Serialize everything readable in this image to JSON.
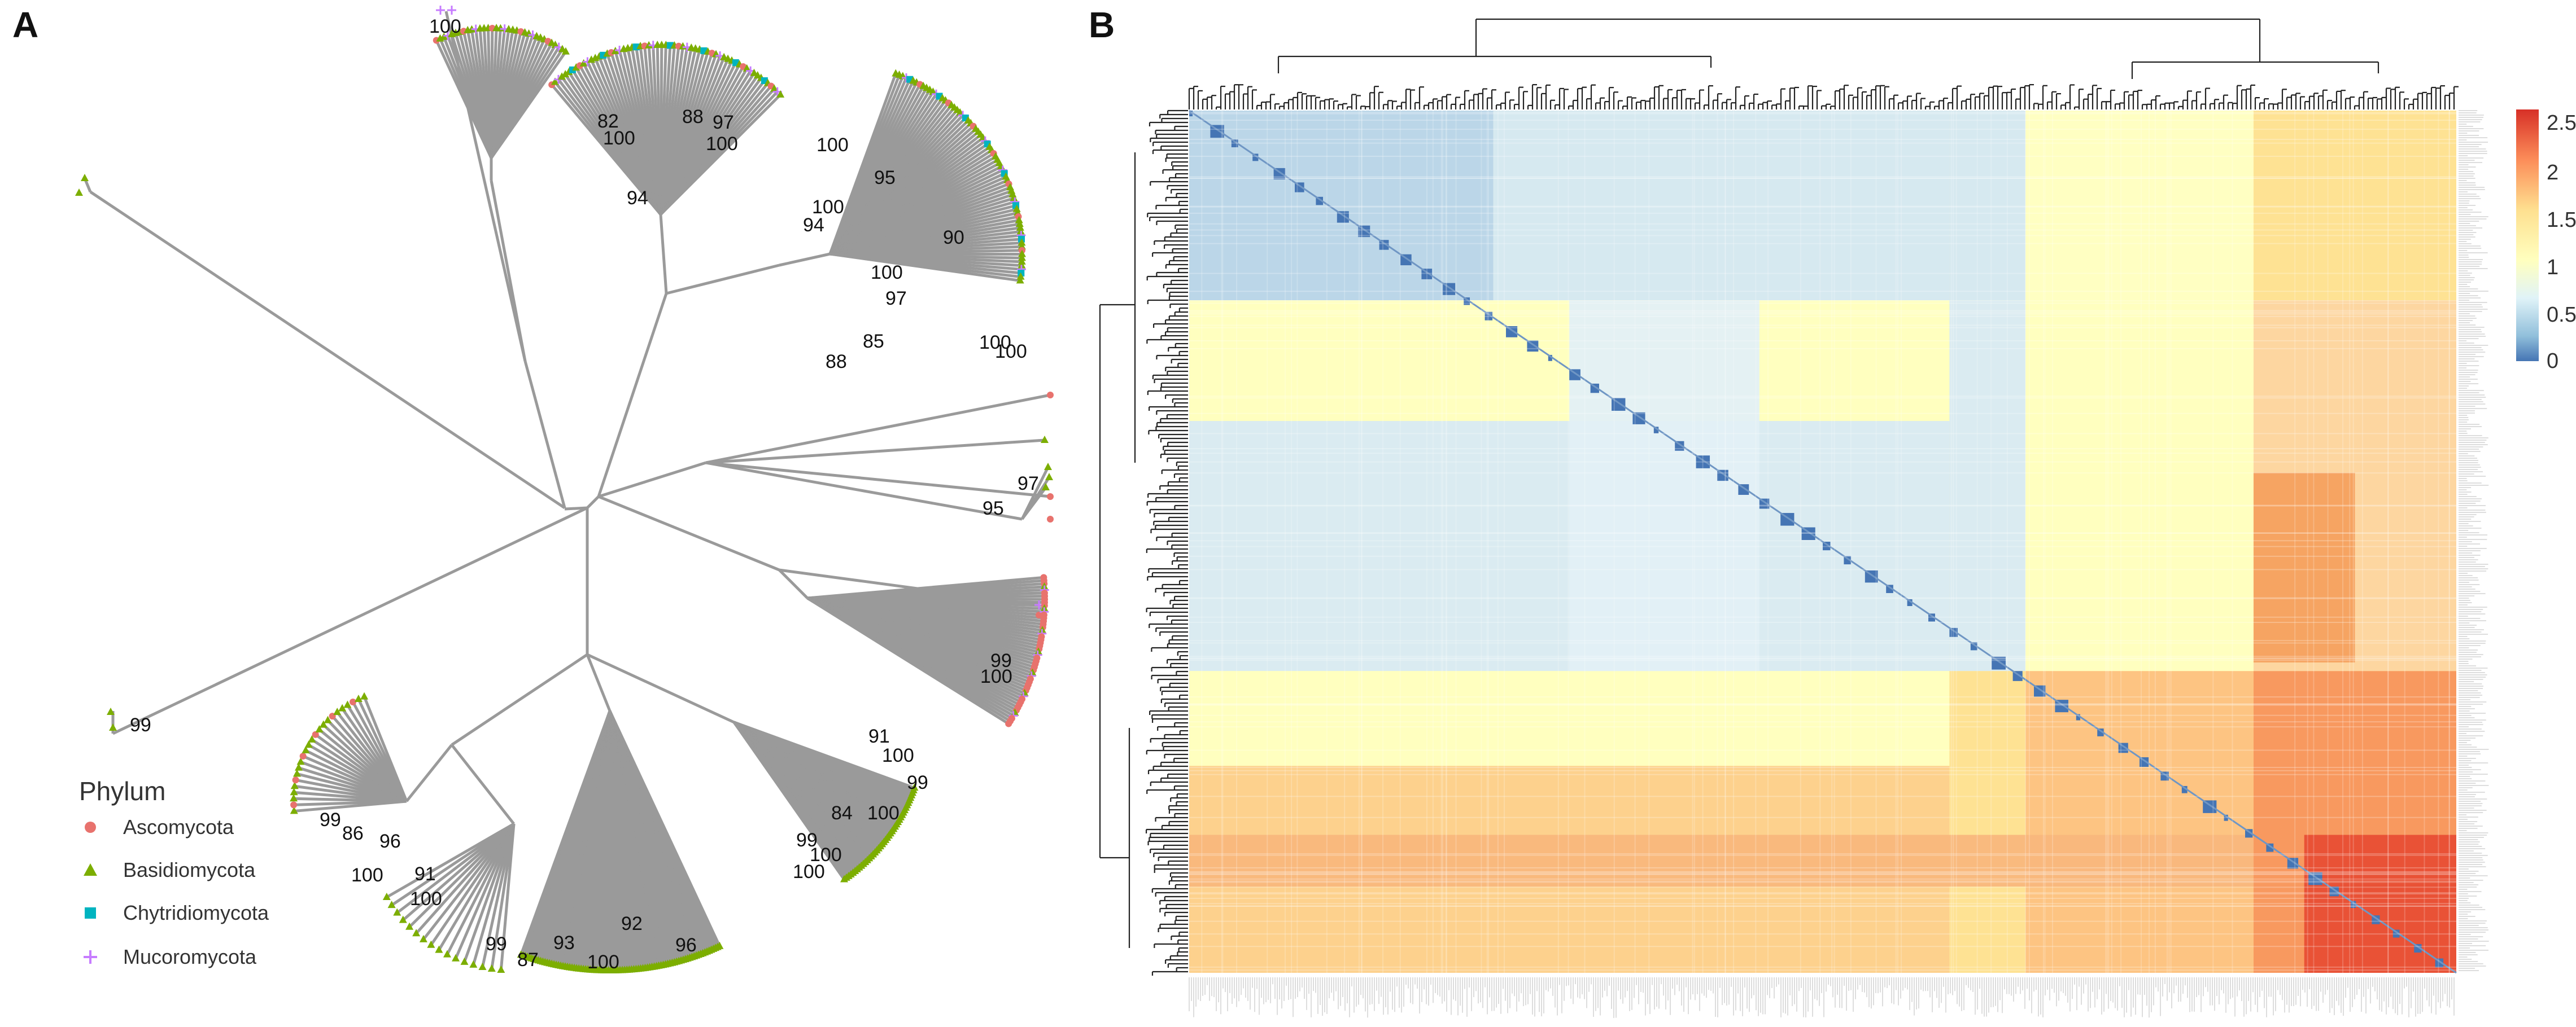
{
  "panel_a": {
    "letter": "A",
    "legend": {
      "title": "Phylum",
      "items": [
        {
          "label": "Ascomycota",
          "color": "#e8726d",
          "shape": "circle"
        },
        {
          "label": "Basidiomycota",
          "color": "#7cae00",
          "shape": "triangle"
        },
        {
          "label": "Chytridiomycota",
          "color": "#00b4c0",
          "shape": "square"
        },
        {
          "label": "Mucoromycota",
          "color": "#c77cff",
          "shape": "plus"
        }
      ]
    },
    "bootstrap_labels": [
      "100",
      "94",
      "82",
      "100",
      "88",
      "97",
      "100",
      "94",
      "90",
      "85",
      "88",
      "97",
      "100",
      "100",
      "100",
      "100",
      "100",
      "95",
      "97",
      "95",
      "99",
      "100",
      "91",
      "100",
      "99",
      "84",
      "100",
      "99",
      "100",
      "100",
      "99",
      "86",
      "96",
      "100",
      "91",
      "100",
      "99",
      "87",
      "93",
      "100",
      "92",
      "96",
      "99"
    ]
  },
  "panel_b": {
    "letter": "B",
    "colorbar": {
      "ticks": [
        "2.5",
        "2",
        "1.5",
        "1",
        "0.5",
        "0"
      ],
      "colors": [
        "#d73027",
        "#fc8d59",
        "#fee090",
        "#ffffbf",
        "#e0f3f8",
        "#91bfdb",
        "#4575b4"
      ]
    }
  }
}
